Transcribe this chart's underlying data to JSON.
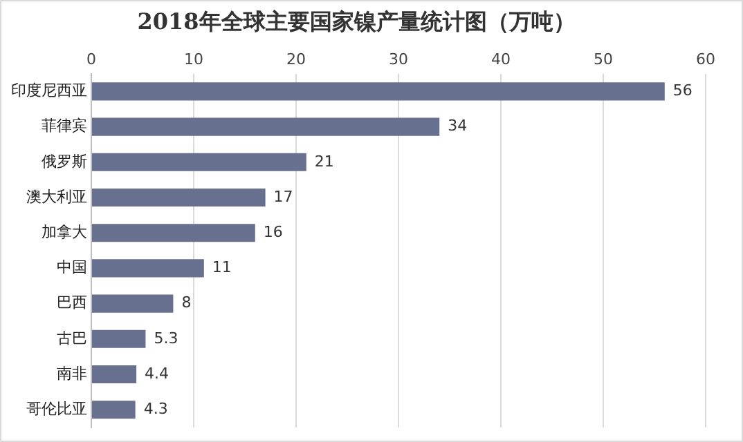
{
  "chart_data": {
    "type": "bar",
    "orientation": "horizontal",
    "title": "2018年全球主要国家镍产量统计图（万吨）",
    "categories": [
      "印度尼西亚",
      "菲律宾",
      "俄罗斯",
      "澳大利亚",
      "加拿大",
      "中国",
      "巴西",
      "古巴",
      "南非",
      "哥伦比亚"
    ],
    "values": [
      56,
      34,
      21,
      17,
      16,
      11,
      8,
      5.3,
      4.4,
      4.3
    ],
    "color": "#68708f",
    "xlim": [
      0,
      60
    ],
    "xticks": [
      0,
      10,
      20,
      30,
      40,
      50,
      60
    ],
    "grid": "x",
    "data_labels": true
  }
}
